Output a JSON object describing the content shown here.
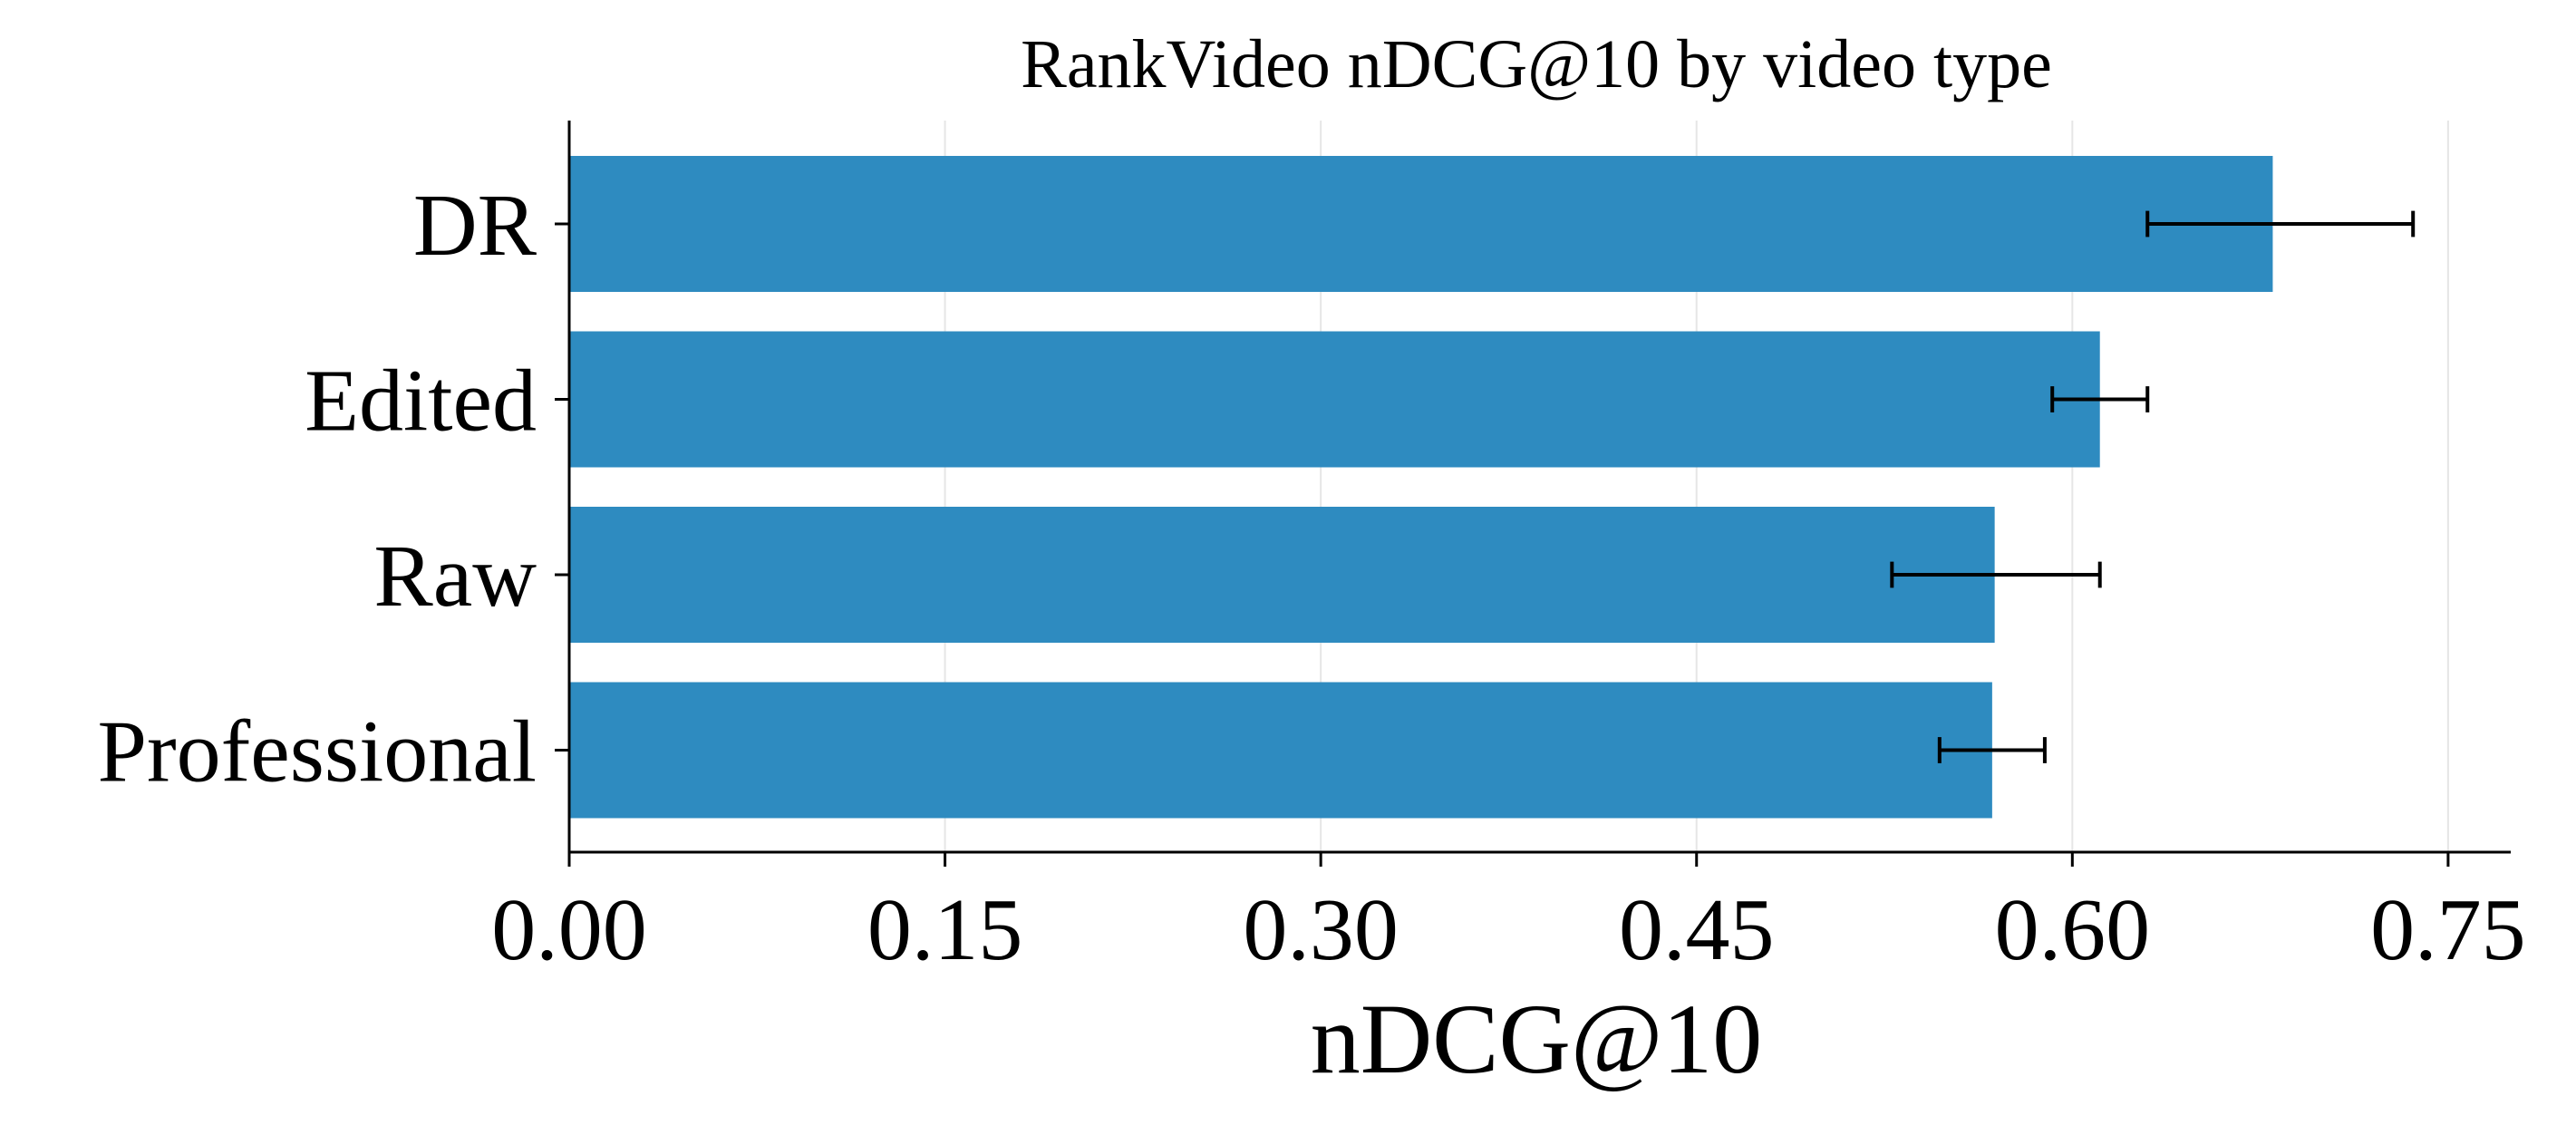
{
  "chart_data": {
    "type": "bar",
    "orientation": "horizontal",
    "title": "RankVideo nDCG@10 by video type",
    "xlabel": "nDCG@10",
    "ylabel": "",
    "categories": [
      "DR",
      "Edited",
      "Raw",
      "Professional"
    ],
    "values": [
      0.68,
      0.611,
      0.569,
      0.568
    ],
    "error_low": [
      0.63,
      0.592,
      0.528,
      0.547
    ],
    "error_high": [
      0.736,
      0.63,
      0.611,
      0.589
    ],
    "xlim": [
      0,
      0.775
    ],
    "xticks": [
      0.0,
      0.15,
      0.3,
      0.45,
      0.6,
      0.75
    ],
    "xtick_labels": [
      "0.00",
      "0.15",
      "0.30",
      "0.45",
      "0.60",
      "0.75"
    ],
    "grid": "vertical",
    "legend": "none"
  },
  "colors": {
    "bar": "#2E8BC0",
    "error_bar": "#000000",
    "axis": "#000000",
    "grid": "#E6E6E6"
  }
}
